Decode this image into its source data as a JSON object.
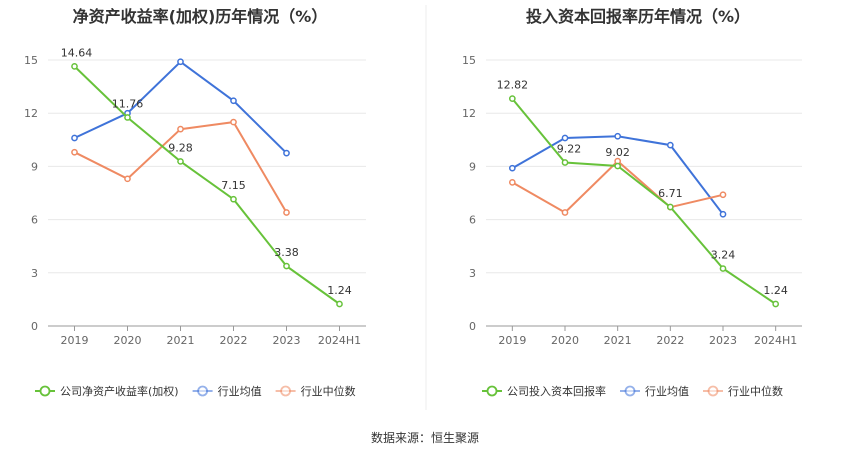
{
  "source": "数据来源：恒生聚源",
  "chart_data": [
    {
      "type": "line",
      "title": "净资产收益率(加权)历年情况（%）",
      "categories": [
        "2019",
        "2020",
        "2021",
        "2022",
        "2023",
        "2024H1"
      ],
      "ylim": [
        0,
        15
      ],
      "yticks": [
        0,
        3,
        6,
        9,
        12,
        15
      ],
      "grid": true,
      "legend_position": "bottom",
      "series": [
        {
          "name": "公司净资产收益率(加权)",
          "color": "#67c23a",
          "values": [
            14.64,
            11.76,
            9.28,
            7.15,
            3.38,
            1.24
          ],
          "labels": true
        },
        {
          "name": "行业均值",
          "color": "#3f73d9",
          "values": [
            10.6,
            12.0,
            14.9,
            12.7,
            9.75,
            null
          ],
          "labels": false
        },
        {
          "name": "行业中位数",
          "color": "#ef8a62",
          "values": [
            9.8,
            8.3,
            11.1,
            11.5,
            6.4,
            null
          ],
          "labels": false
        }
      ]
    },
    {
      "type": "line",
      "title": "投入资本回报率历年情况（%）",
      "categories": [
        "2019",
        "2020",
        "2021",
        "2022",
        "2023",
        "2024H1"
      ],
      "ylim": [
        0,
        15
      ],
      "yticks": [
        0,
        3,
        6,
        9,
        12,
        15
      ],
      "grid": true,
      "legend_position": "bottom",
      "series": [
        {
          "name": "公司投入资本回报率",
          "color": "#67c23a",
          "values": [
            12.82,
            9.22,
            9.02,
            6.71,
            3.24,
            1.24
          ],
          "labels": true
        },
        {
          "name": "行业均值",
          "color": "#3f73d9",
          "values": [
            8.9,
            10.6,
            10.7,
            10.2,
            6.3,
            null
          ],
          "labels": false
        },
        {
          "name": "行业中位数",
          "color": "#ef8a62",
          "values": [
            8.1,
            6.4,
            9.3,
            6.7,
            7.4,
            null
          ],
          "labels": false
        }
      ]
    }
  ]
}
